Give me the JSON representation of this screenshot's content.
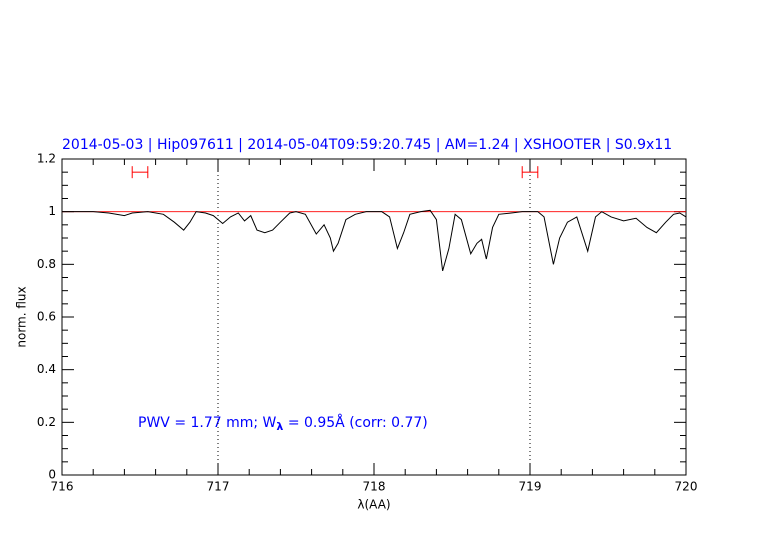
{
  "chart_data": {
    "type": "line",
    "title": "2014-05-03 | Hip097611 | 2014-05-04T09:59:20.745 | AM=1.24 | XSHOOTER | S0.9x11",
    "x_label": "λ(AA)",
    "y_label": "norm. flux",
    "annotation": [
      "PWV  =  1.77  mm;  W",
      "λ",
      "  =  0.95Å  (corr:  0.77)"
    ],
    "xlim": [
      716,
      720
    ],
    "xticks": [
      716,
      717,
      718,
      719,
      720
    ],
    "ylim": [
      0,
      1.2
    ],
    "yticks": [
      0,
      0.2,
      0.4,
      0.6,
      0.8,
      1,
      1.2
    ],
    "continuum": {
      "value": 1,
      "color": "#ff0000"
    },
    "reference_lines": [
      717,
      719
    ],
    "windows": {
      "color": "#ff0000",
      "level": 1.15,
      "ranges": [
        [
          716.45,
          716.55
        ],
        [
          718.95,
          719.05
        ]
      ]
    },
    "series": [
      {
        "color": "#000000",
        "x": [
          716.0,
          716.1,
          716.2,
          716.3,
          716.4,
          716.45,
          716.55,
          716.65,
          716.72,
          716.78,
          716.82,
          716.86,
          716.92,
          716.97,
          717.03,
          717.08,
          717.13,
          717.17,
          717.21,
          717.25,
          717.3,
          717.35,
          717.4,
          717.46,
          717.5,
          717.56,
          717.63,
          717.68,
          717.72,
          717.74,
          717.77,
          717.82,
          717.88,
          717.95,
          718.05,
          718.1,
          718.15,
          718.19,
          718.23,
          718.3,
          718.36,
          718.4,
          718.44,
          718.48,
          718.52,
          718.56,
          718.62,
          718.66,
          718.69,
          718.72,
          718.76,
          718.8,
          718.88,
          718.95,
          719.05,
          719.09,
          719.15,
          719.19,
          719.24,
          719.3,
          719.37,
          719.42,
          719.46,
          719.52,
          719.6,
          719.68,
          719.75,
          719.81,
          719.87,
          719.92,
          719.96,
          720.0
        ],
        "values": [
          1.0,
          1.0,
          1.0,
          0.995,
          0.985,
          0.995,
          1.0,
          0.99,
          0.96,
          0.93,
          0.96,
          1.0,
          0.995,
          0.985,
          0.955,
          0.98,
          0.995,
          0.965,
          0.985,
          0.93,
          0.92,
          0.93,
          0.96,
          0.995,
          1.0,
          0.99,
          0.915,
          0.95,
          0.9,
          0.85,
          0.88,
          0.97,
          0.99,
          1.0,
          1.0,
          0.98,
          0.86,
          0.92,
          0.99,
          1.0,
          1.005,
          0.97,
          0.775,
          0.86,
          0.99,
          0.97,
          0.84,
          0.88,
          0.895,
          0.82,
          0.94,
          0.99,
          0.995,
          1.0,
          1.0,
          0.98,
          0.8,
          0.9,
          0.96,
          0.98,
          0.85,
          0.98,
          1.0,
          0.98,
          0.965,
          0.975,
          0.94,
          0.92,
          0.96,
          0.99,
          0.995,
          0.98
        ]
      }
    ]
  }
}
